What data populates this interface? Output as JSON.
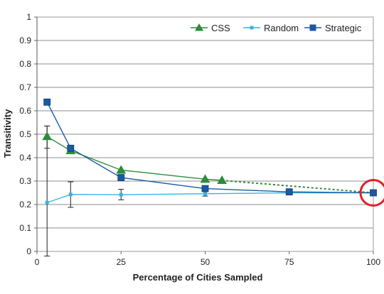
{
  "chart_data": {
    "type": "line",
    "title": "",
    "xlabel": "Percentage of Cities Sampled",
    "ylabel": "Transitivity",
    "xlim": [
      0,
      100
    ],
    "ylim": [
      0,
      1
    ],
    "x_ticks": [
      "0",
      "25",
      "50",
      "75",
      "100"
    ],
    "x_tick_values": [
      0,
      25,
      50,
      75,
      100
    ],
    "y_ticks": [
      "0",
      "0.1",
      "0.2",
      "0.3",
      "0.4",
      "0.5",
      "0.6",
      "0.7",
      "0.8",
      "0.9",
      "1"
    ],
    "y_tick_values": [
      0,
      0.1,
      0.2,
      0.3,
      0.4,
      0.5,
      0.6,
      0.7,
      0.8,
      0.9,
      1
    ],
    "grid": "horizontal",
    "legend_position": "top-right",
    "series": [
      {
        "name": "CSS",
        "color": "#2e8b3a",
        "marker": "triangle",
        "x": [
          3,
          10,
          25,
          50,
          55
        ],
        "y": [
          0.49,
          0.43,
          0.347,
          0.308,
          0.303
        ],
        "dashed_extension": {
          "x": [
            55,
            100
          ],
          "y": [
            0.303,
            0.25
          ]
        }
      },
      {
        "name": "Random",
        "color": "#38b2e8",
        "marker": "small-square",
        "x": [
          3,
          10,
          25,
          50,
          75,
          100
        ],
        "y": [
          0.208,
          0.243,
          0.242,
          0.246,
          0.25,
          0.25
        ],
        "error_bars": [
          {
            "x": 3,
            "low": -0.02,
            "high": 0.535
          },
          {
            "x": 3,
            "low": 0.44,
            "high": 0.535
          },
          {
            "x": 10,
            "low": 0.188,
            "high": 0.297
          },
          {
            "x": 25,
            "low": 0.22,
            "high": 0.265
          },
          {
            "x": 50,
            "low": 0.236,
            "high": 0.258
          }
        ]
      },
      {
        "name": "Strategic",
        "color": "#1a5aa0",
        "marker": "square",
        "x": [
          3,
          10,
          25,
          50,
          75,
          100
        ],
        "y": [
          0.637,
          0.44,
          0.315,
          0.268,
          0.254,
          0.25
        ]
      }
    ],
    "highlight": {
      "shape": "circle",
      "x": 100,
      "y": 0.25,
      "color": "#e0202a"
    }
  }
}
